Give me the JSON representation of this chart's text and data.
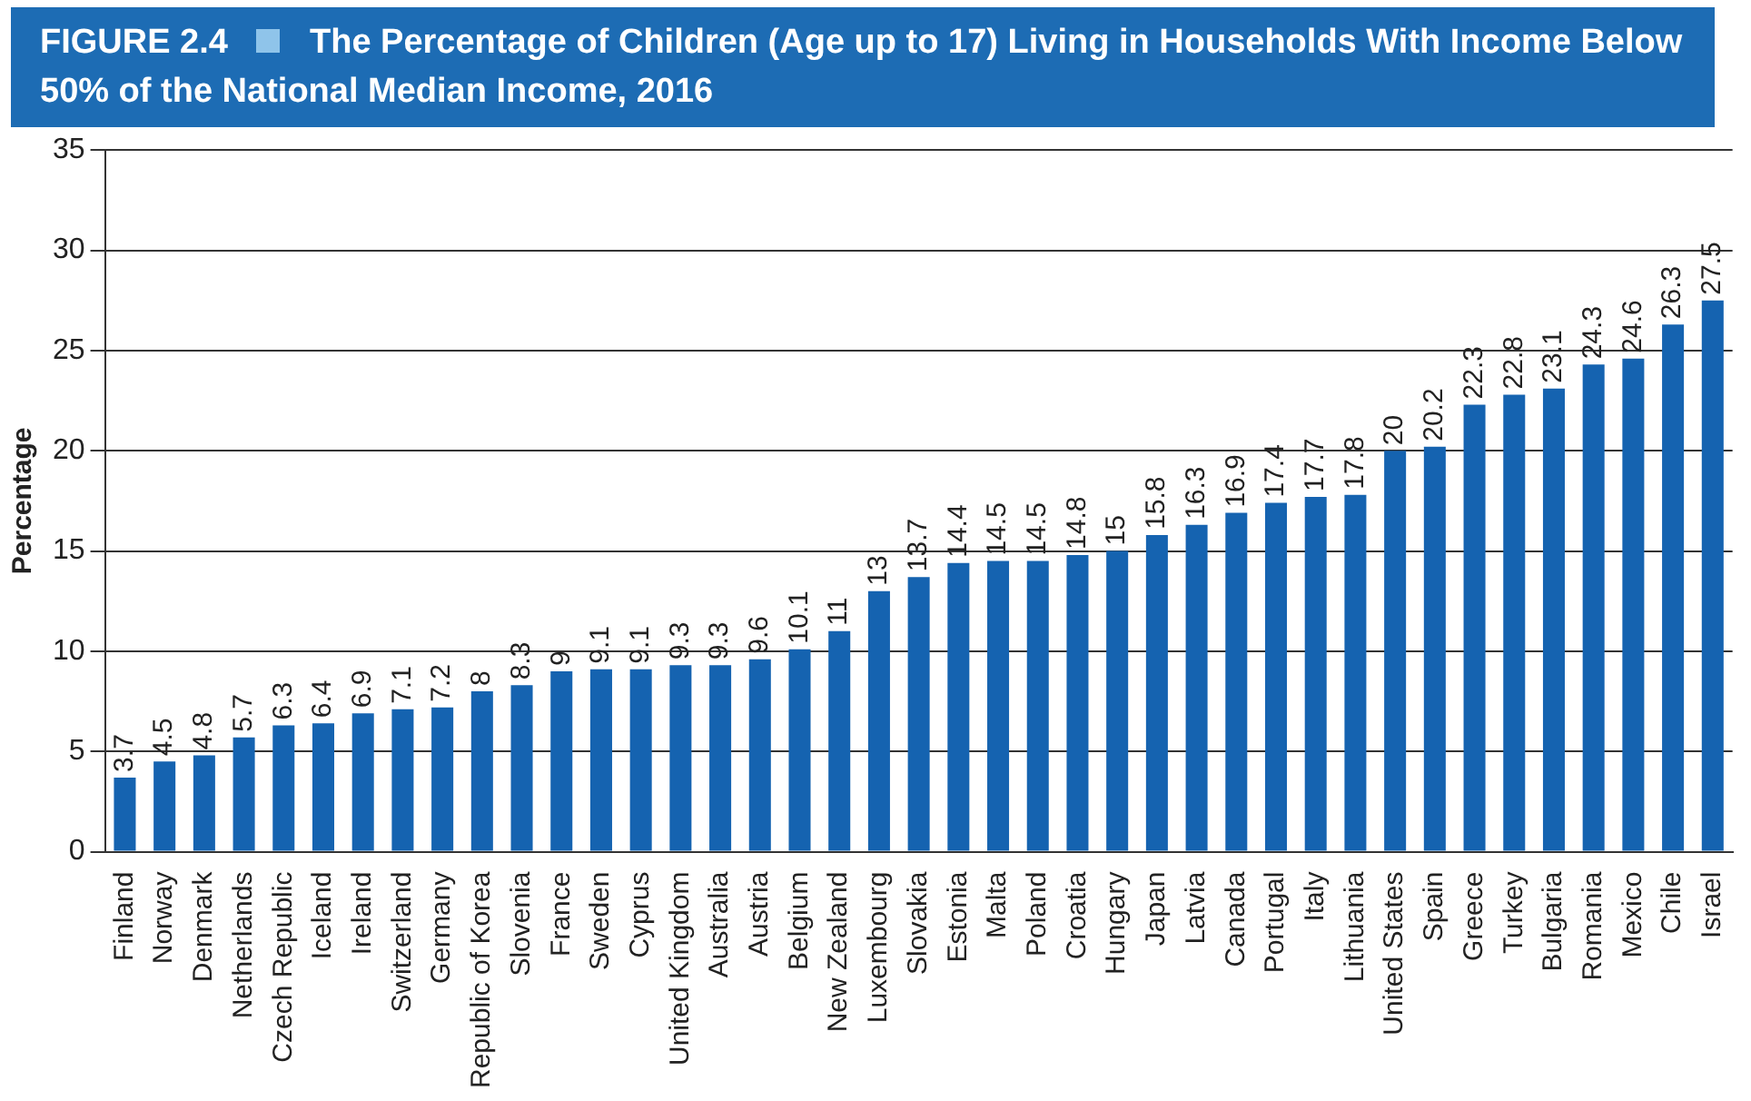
{
  "chart_data": {
    "type": "bar",
    "title": "FIGURE 2.4",
    "subtitle": "The Percentage of Children (Age up to 17) Living in Households With Income Below 50% of the National Median Income, 2016",
    "ylabel": "Percentage",
    "categories": [
      "Finland",
      "Norway",
      "Denmark",
      "Netherlands",
      "Czech Republic",
      "Iceland",
      "Ireland",
      "Switzerland",
      "Germany",
      "Republic of Korea",
      "Slovenia",
      "France",
      "Sweden",
      "Cyprus",
      "United Kingdom",
      "Australia",
      "Austria",
      "Belgium",
      "New Zealand",
      "Luxembourg",
      "Slovakia",
      "Estonia",
      "Malta",
      "Poland",
      "Croatia",
      "Hungary",
      "Japan",
      "Latvia",
      "Canada",
      "Portugal",
      "Italy",
      "Lithuania",
      "United States",
      "Spain",
      "Greece",
      "Turkey",
      "Bulgaria",
      "Romania",
      "Mexico",
      "Chile",
      "Israel"
    ],
    "values": [
      3.7,
      4.5,
      4.8,
      5.7,
      6.3,
      6.4,
      6.9,
      7.1,
      7.2,
      8,
      8.3,
      9,
      9.1,
      9.1,
      9.3,
      9.3,
      9.6,
      10.1,
      11,
      13,
      13.7,
      14.4,
      14.5,
      14.5,
      14.8,
      15,
      15.8,
      16.3,
      16.9,
      17.4,
      17.7,
      17.8,
      20,
      20.2,
      22.3,
      22.8,
      23.1,
      24.3,
      24.6,
      26.3,
      27.5
    ],
    "color": "#1563b0",
    "ylim": [
      0,
      35
    ],
    "yticks": [
      0,
      5,
      10,
      15,
      20,
      25,
      30,
      35
    ],
    "grid": "y",
    "legend": false,
    "data_labels": true
  }
}
